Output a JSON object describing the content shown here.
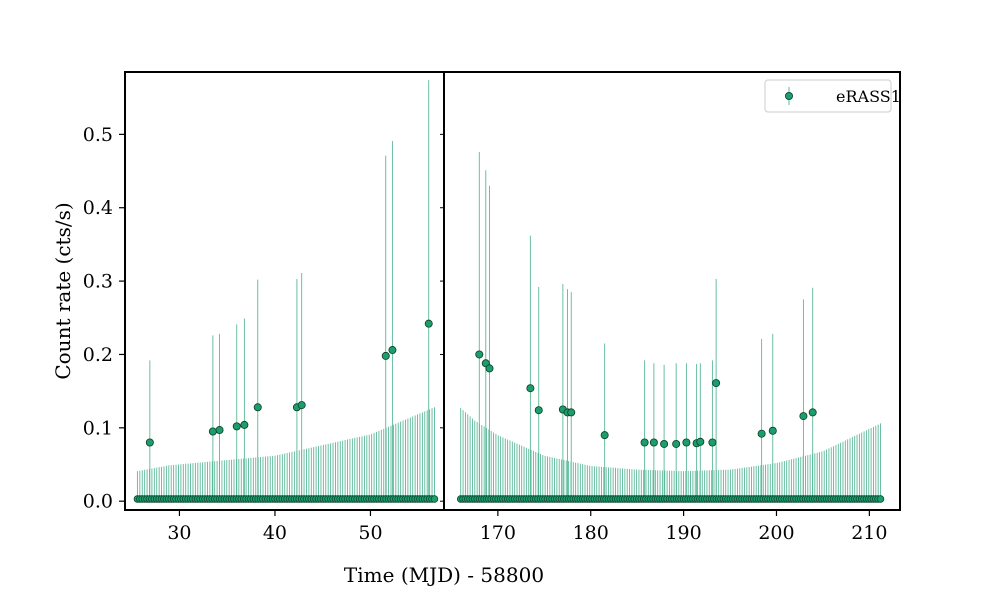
{
  "chart_data": {
    "type": "scatter",
    "subtype": "errorbar-broken-x-axis",
    "xlabel": "Time (MJD) - 58800",
    "ylabel": "Count rate (cts/s)",
    "ylim": [
      -0.012,
      0.585
    ],
    "yticks": [
      0.0,
      0.1,
      0.2,
      0.3,
      0.4,
      0.5
    ],
    "ytick_labels": [
      "0.0",
      "0.1",
      "0.2",
      "0.3",
      "0.4",
      "0.5"
    ],
    "grid": false,
    "legend": {
      "position": "top-right",
      "entries": [
        "eRASS1"
      ]
    },
    "colors": {
      "marker_fill": "#1b9e6b",
      "marker_edge": "#0b3d2a",
      "errorbar": "#5bb898",
      "axes": "#000000"
    },
    "panels": [
      {
        "xlim": [
          24.3,
          57.7
        ],
        "xticks": [
          30,
          40,
          50
        ],
        "xtick_labels": [
          "30",
          "40",
          "50"
        ],
        "upper_limits": {
          "x_start": 25.6,
          "x_end": 56.7,
          "n": 124,
          "y": 0.003,
          "error_upper": [
            [
              25.6,
              0.041
            ],
            [
              29,
              0.049
            ],
            [
              40,
              0.062
            ],
            [
              50,
              0.091
            ],
            [
              56.7,
              0.128
            ]
          ]
        },
        "detections": [
          {
            "x": 26.9,
            "y": 0.08,
            "yerr_hi": 0.192
          },
          {
            "x": 33.5,
            "y": 0.095,
            "yerr_hi": 0.226
          },
          {
            "x": 34.2,
            "y": 0.097,
            "yerr_hi": 0.228
          },
          {
            "x": 36.0,
            "y": 0.102,
            "yerr_hi": 0.241
          },
          {
            "x": 36.8,
            "y": 0.104,
            "yerr_hi": 0.249
          },
          {
            "x": 38.2,
            "y": 0.128,
            "yerr_hi": 0.302
          },
          {
            "x": 42.3,
            "y": 0.128,
            "yerr_hi": 0.303
          },
          {
            "x": 42.8,
            "y": 0.131,
            "yerr_hi": 0.311
          },
          {
            "x": 51.6,
            "y": 0.198,
            "yerr_hi": 0.471
          },
          {
            "x": 52.3,
            "y": 0.206,
            "yerr_hi": 0.491
          },
          {
            "x": 56.1,
            "y": 0.242,
            "yerr_hi": 0.574
          }
        ]
      },
      {
        "xlim": [
          164.2,
          213.3
        ],
        "xticks": [
          170,
          180,
          190,
          200,
          210
        ],
        "xtick_labels": [
          "170",
          "180",
          "190",
          "200",
          "210"
        ],
        "upper_limits": {
          "x_start": 166.0,
          "x_end": 211.2,
          "n": 180,
          "y": 0.003,
          "error_upper": [
            [
              166.0,
              0.127
            ],
            [
              167.5,
              0.11
            ],
            [
              170,
              0.09
            ],
            [
              175,
              0.062
            ],
            [
              180,
              0.048
            ],
            [
              185,
              0.043
            ],
            [
              190,
              0.041
            ],
            [
              195,
              0.043
            ],
            [
              200,
              0.052
            ],
            [
              205,
              0.068
            ],
            [
              211.2,
              0.106
            ]
          ]
        },
        "detections": [
          {
            "x": 168.0,
            "y": 0.2,
            "yerr_hi": 0.476
          },
          {
            "x": 168.7,
            "y": 0.188,
            "yerr_hi": 0.451
          },
          {
            "x": 169.1,
            "y": 0.181,
            "yerr_hi": 0.43
          },
          {
            "x": 173.5,
            "y": 0.154,
            "yerr_hi": 0.362
          },
          {
            "x": 174.4,
            "y": 0.124,
            "yerr_hi": 0.292
          },
          {
            "x": 177.0,
            "y": 0.125,
            "yerr_hi": 0.296
          },
          {
            "x": 177.5,
            "y": 0.121,
            "yerr_hi": 0.289
          },
          {
            "x": 177.9,
            "y": 0.121,
            "yerr_hi": 0.285
          },
          {
            "x": 181.5,
            "y": 0.09,
            "yerr_hi": 0.215
          },
          {
            "x": 185.8,
            "y": 0.08,
            "yerr_hi": 0.192
          },
          {
            "x": 186.8,
            "y": 0.08,
            "yerr_hi": 0.188
          },
          {
            "x": 187.9,
            "y": 0.078,
            "yerr_hi": 0.186
          },
          {
            "x": 189.2,
            "y": 0.078,
            "yerr_hi": 0.188
          },
          {
            "x": 190.3,
            "y": 0.08,
            "yerr_hi": 0.188
          },
          {
            "x": 191.4,
            "y": 0.079,
            "yerr_hi": 0.187
          },
          {
            "x": 191.8,
            "y": 0.081,
            "yerr_hi": 0.188
          },
          {
            "x": 193.1,
            "y": 0.08,
            "yerr_hi": 0.192
          },
          {
            "x": 193.5,
            "y": 0.161,
            "yerr_hi": 0.303
          },
          {
            "x": 198.4,
            "y": 0.092,
            "yerr_hi": 0.221
          },
          {
            "x": 199.6,
            "y": 0.096,
            "yerr_hi": 0.228
          },
          {
            "x": 202.9,
            "y": 0.116,
            "yerr_hi": 0.275
          },
          {
            "x": 203.9,
            "y": 0.121,
            "yerr_hi": 0.291
          }
        ]
      }
    ]
  }
}
